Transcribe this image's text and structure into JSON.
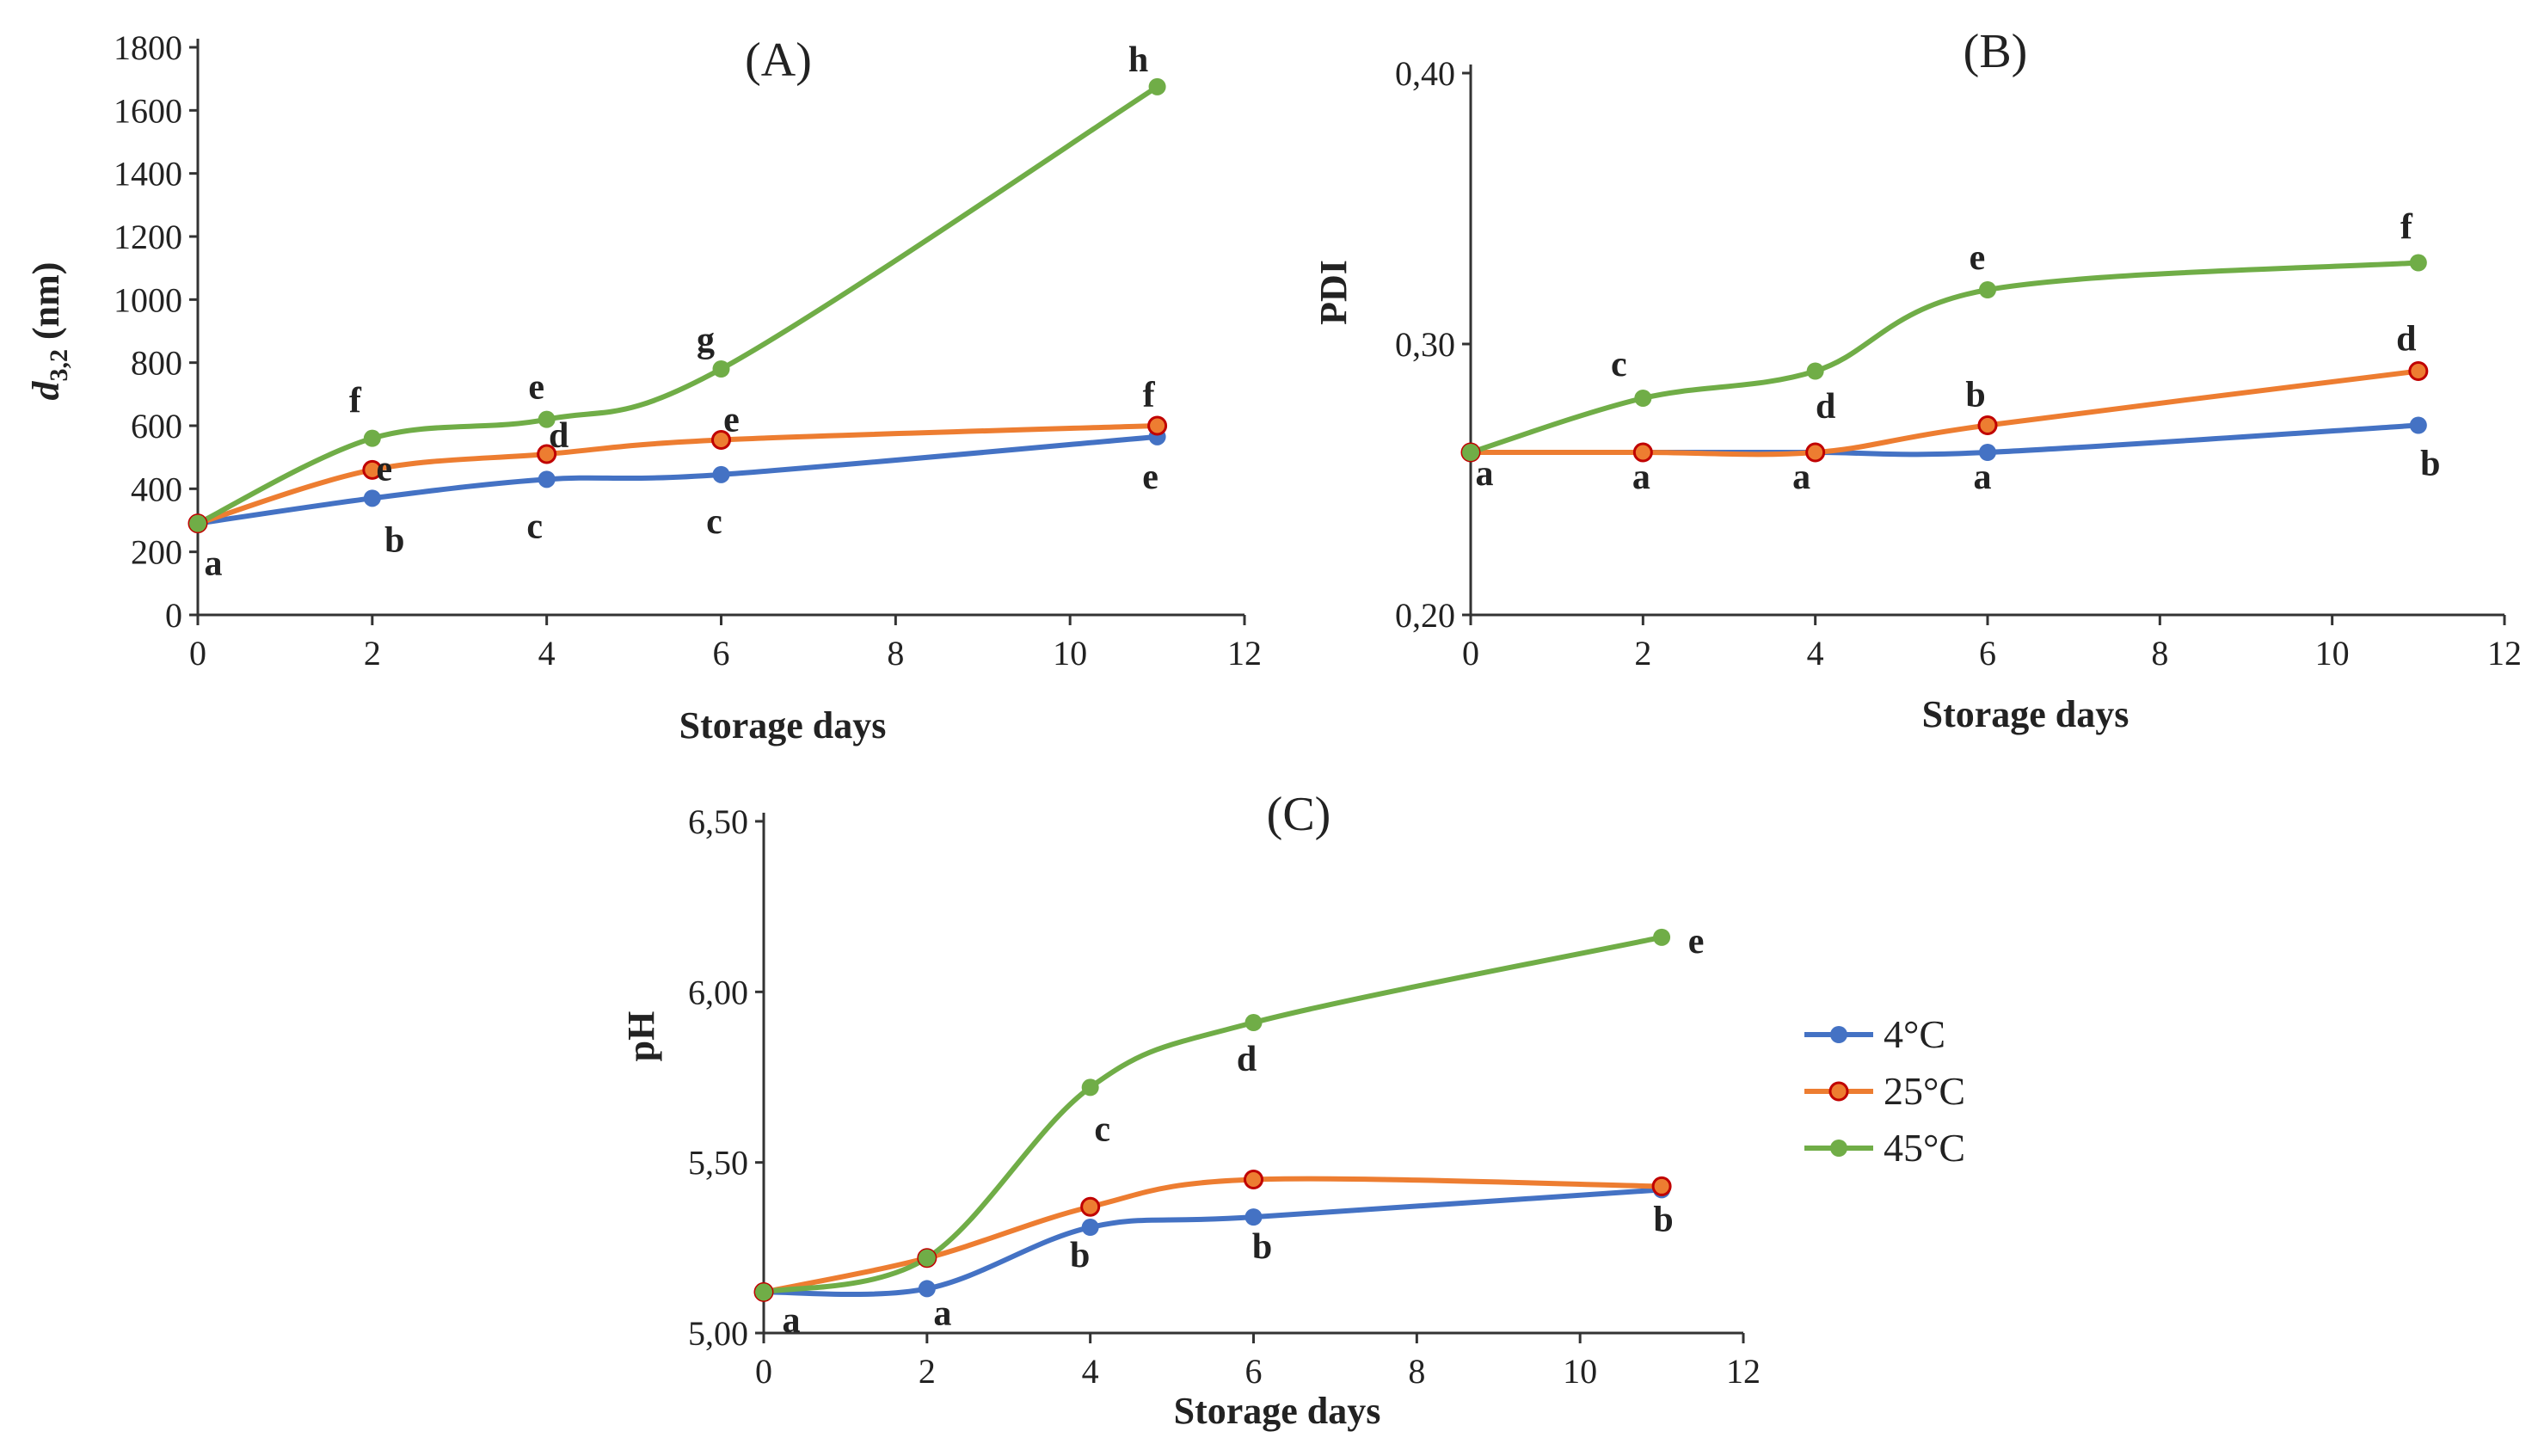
{
  "legend": {
    "entries": [
      {
        "name": "4°C",
        "color": "#4472c4",
        "marker": "circle"
      },
      {
        "name": "25°C",
        "color": "#ed7d31",
        "marker": "circle-red-outline"
      },
      {
        "name": "45°C",
        "color": "#70ad47",
        "marker": "circle"
      }
    ]
  },
  "chart_data": [
    {
      "type": "line",
      "title": "(A)",
      "xlabel": "Storage days",
      "ylabel": "d3,2 (nm)",
      "ylabel_main": "d",
      "ylabel_sub": "3,2",
      "ylabel_rest": " (nm)",
      "xlim": [
        0,
        12
      ],
      "ylim": [
        0,
        1800
      ],
      "xticks": [
        0,
        2,
        4,
        6,
        8,
        10,
        12
      ],
      "yticks": [
        0,
        200,
        400,
        600,
        800,
        1000,
        1200,
        1400,
        1600,
        1800
      ],
      "ytick_labels": [
        "0",
        "200",
        "400",
        "600",
        "800",
        "1000",
        "1200",
        "1400",
        "1600",
        "1800"
      ],
      "grid": false,
      "series": [
        {
          "name": "4°C",
          "color": "#4472c4",
          "x": [
            0,
            2,
            4,
            6,
            11
          ],
          "y": [
            290,
            370,
            430,
            445,
            565
          ],
          "letters": [
            "a",
            "b",
            "c",
            "c",
            "e"
          ]
        },
        {
          "name": "25°C",
          "color": "#ed7d31",
          "x": [
            0,
            2,
            4,
            6,
            11
          ],
          "y": [
            290,
            460,
            510,
            555,
            600
          ],
          "letters": [
            "",
            "e",
            "d",
            "e",
            "f"
          ]
        },
        {
          "name": "45°C",
          "color": "#70ad47",
          "x": [
            0,
            2,
            4,
            6,
            11
          ],
          "y": [
            290,
            560,
            620,
            780,
            1675
          ],
          "letters": [
            "",
            "f",
            "e",
            "g",
            "h"
          ]
        }
      ]
    },
    {
      "type": "line",
      "title": "(B)",
      "xlabel": "Storage days",
      "ylabel": "PDI",
      "xlim": [
        0,
        12
      ],
      "ylim": [
        0.2,
        0.4
      ],
      "xticks": [
        0,
        2,
        4,
        6,
        8,
        10,
        12
      ],
      "yticks": [
        0.2,
        0.3,
        0.4
      ],
      "ytick_labels": [
        "0,20",
        "0,30",
        "0,40"
      ],
      "grid": false,
      "series": [
        {
          "name": "4°C",
          "color": "#4472c4",
          "x": [
            0,
            2,
            4,
            6,
            11
          ],
          "y": [
            0.26,
            0.26,
            0.26,
            0.26,
            0.27
          ],
          "letters": [
            "a",
            "a",
            "a",
            "a",
            "b"
          ]
        },
        {
          "name": "25°C",
          "color": "#ed7d31",
          "x": [
            0,
            2,
            4,
            6,
            11
          ],
          "y": [
            0.26,
            0.26,
            0.26,
            0.27,
            0.29
          ],
          "letters": [
            "",
            "",
            "d",
            "b",
            "d"
          ]
        },
        {
          "name": "45°C",
          "color": "#70ad47",
          "x": [
            0,
            2,
            4,
            6,
            11
          ],
          "y": [
            0.26,
            0.28,
            0.29,
            0.32,
            0.33
          ],
          "letters": [
            "",
            "c",
            "",
            "e",
            "f"
          ]
        }
      ]
    },
    {
      "type": "line",
      "title": "(C)",
      "xlabel": "Storage days",
      "ylabel": "pH",
      "xlim": [
        0,
        12
      ],
      "ylim": [
        5.0,
        6.5
      ],
      "xticks": [
        0,
        2,
        4,
        6,
        8,
        10,
        12
      ],
      "yticks": [
        5.0,
        5.5,
        6.0,
        6.5
      ],
      "ytick_labels": [
        "5,00",
        "5,50",
        "6,00",
        "6,50"
      ],
      "grid": false,
      "series": [
        {
          "name": "4°C",
          "color": "#4472c4",
          "x": [
            0,
            2,
            4,
            6,
            11
          ],
          "y": [
            5.12,
            5.13,
            5.31,
            5.34,
            5.42
          ],
          "letters": [
            "a",
            "a",
            "b",
            "b",
            "b"
          ]
        },
        {
          "name": "25°C",
          "color": "#ed7d31",
          "x": [
            0,
            2,
            4,
            6,
            11
          ],
          "y": [
            5.12,
            5.22,
            5.37,
            5.45,
            5.43
          ],
          "letters": [
            "",
            "",
            "",
            "",
            ""
          ]
        },
        {
          "name": "45°C",
          "color": "#70ad47",
          "x": [
            0,
            2,
            4,
            6,
            11
          ],
          "y": [
            5.12,
            5.22,
            5.72,
            5.91,
            6.16
          ],
          "letters": [
            "",
            "",
            "c",
            "d",
            "e"
          ]
        }
      ]
    }
  ]
}
